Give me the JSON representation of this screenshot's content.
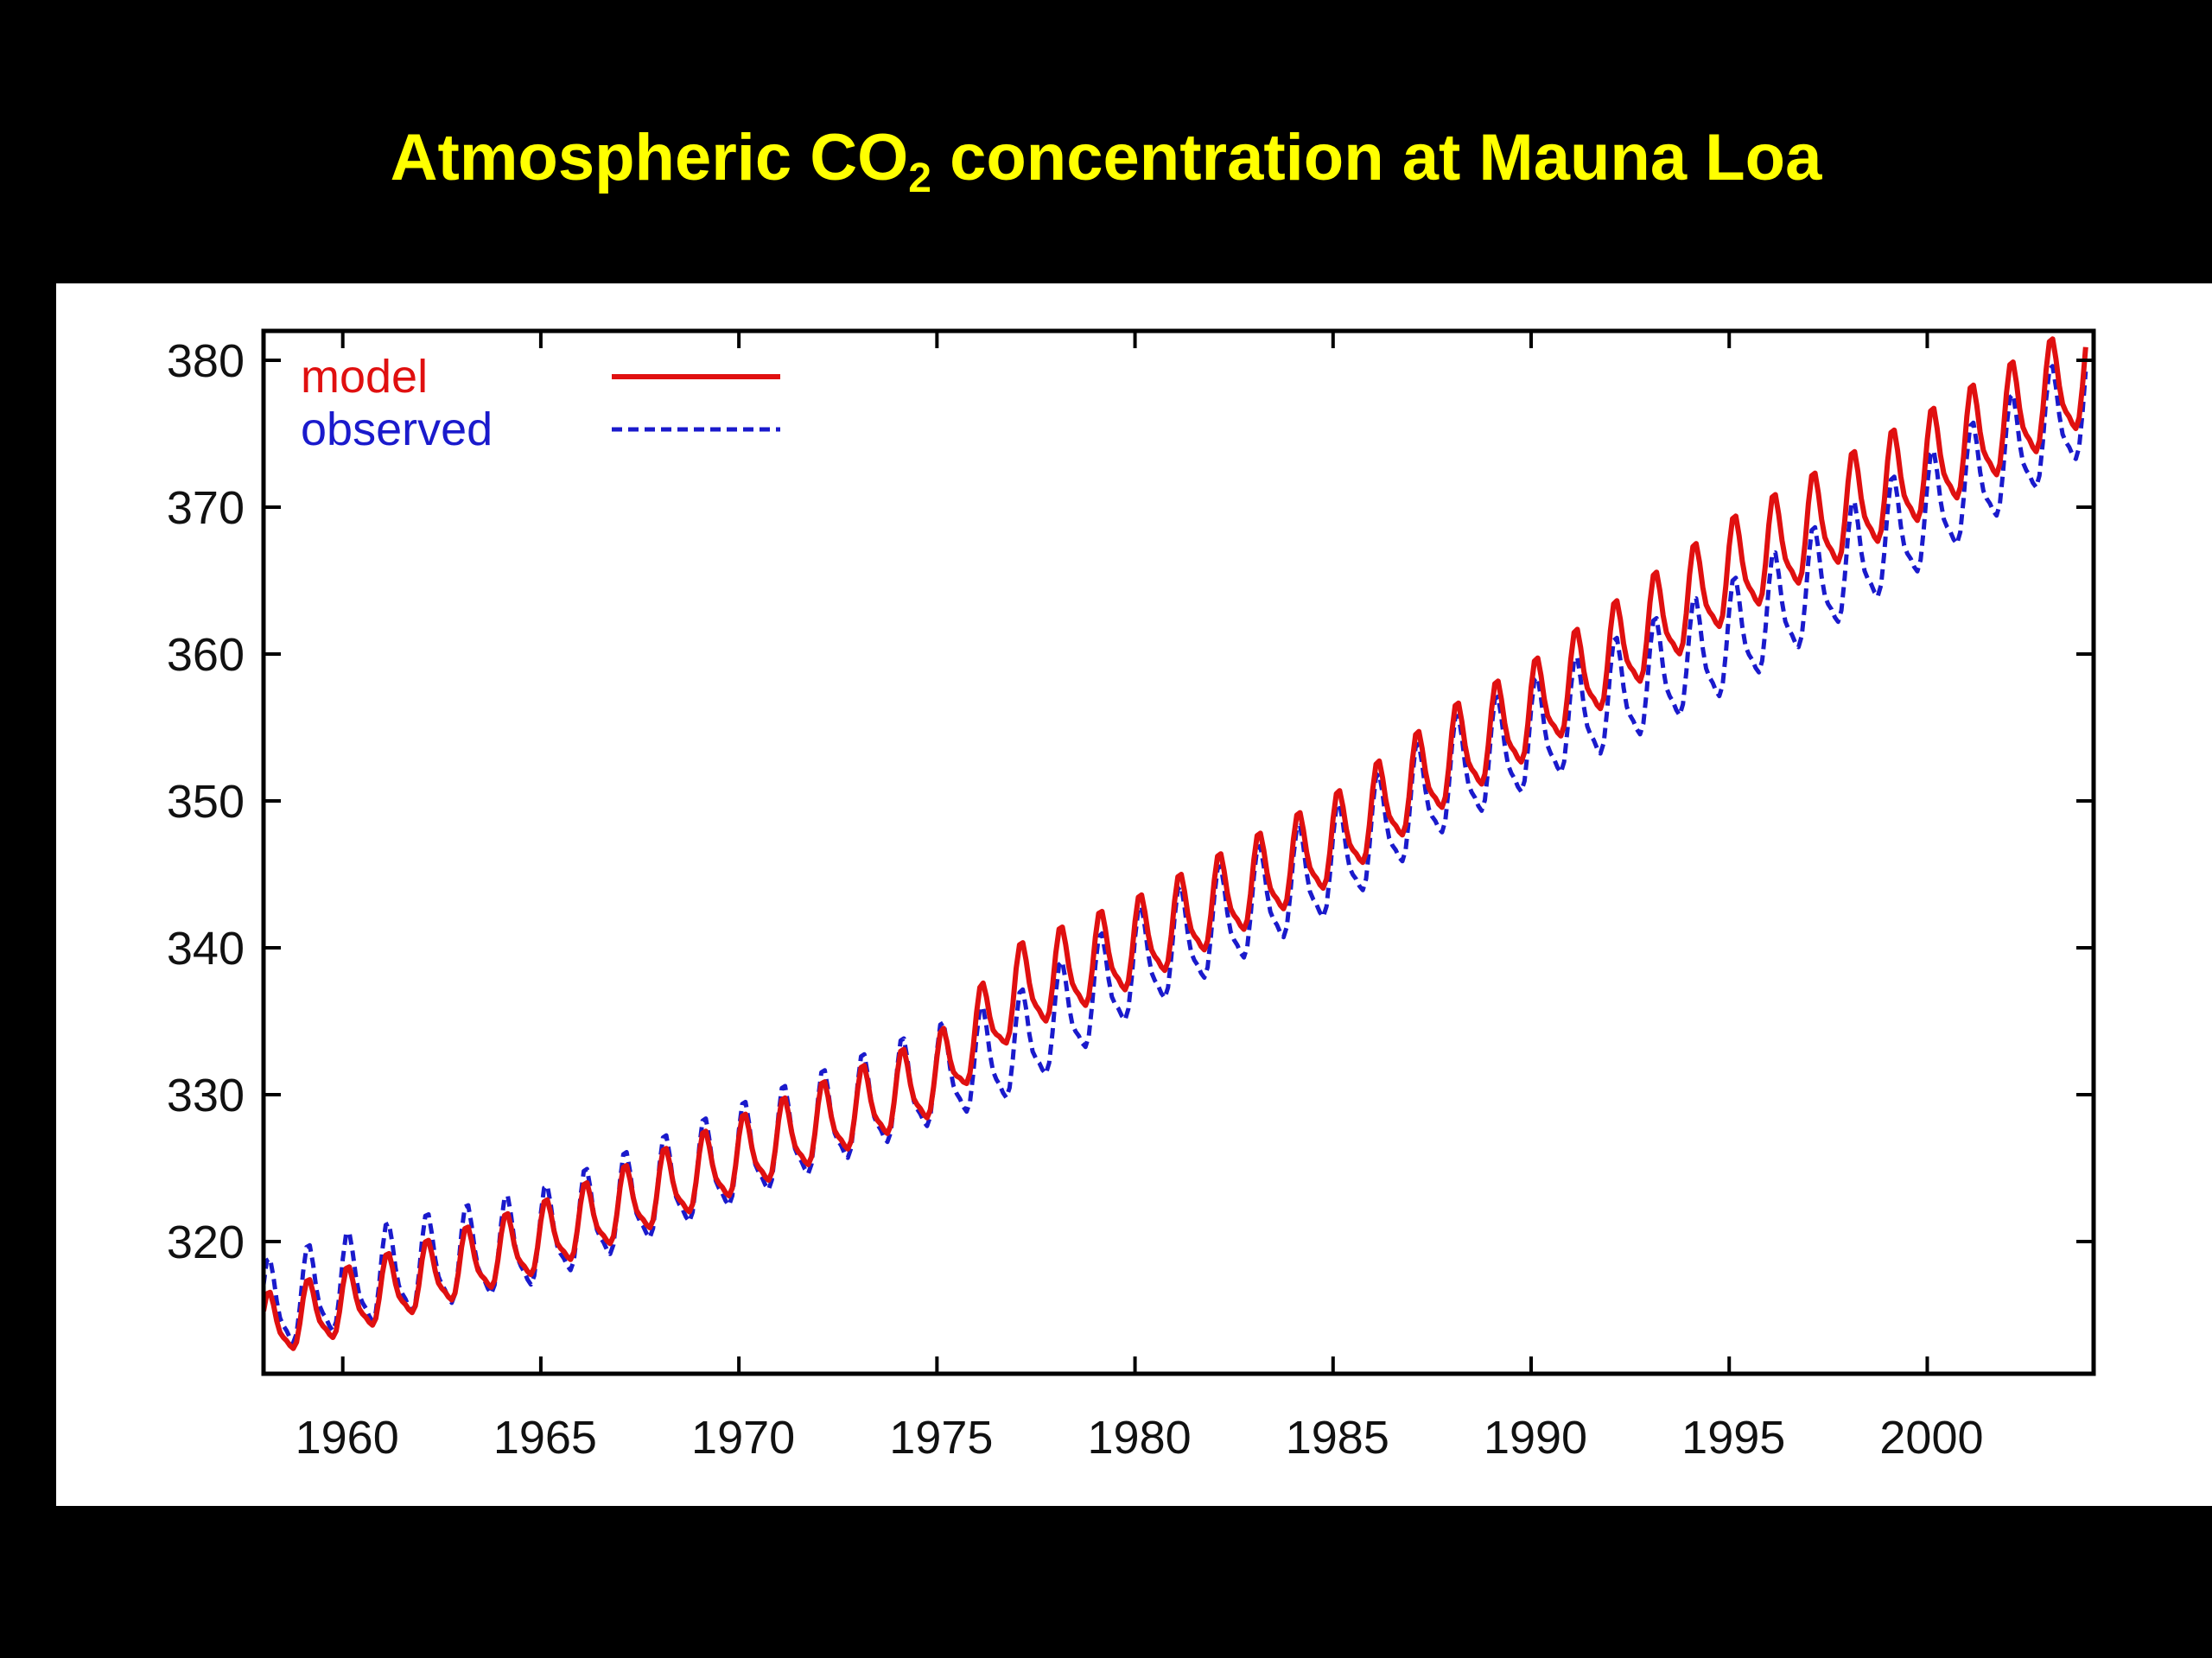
{
  "title": {
    "prefix": "Atmospheric CO",
    "subscript": "2",
    "suffix": " concentration at Mauna Loa"
  },
  "colors": {
    "background": "#000000",
    "title": "#ffff00",
    "panel": "#ffffff",
    "model": "#e01010",
    "observed": "#1a1acc",
    "axis": "#000000"
  },
  "chart_data": {
    "type": "line",
    "title": "Atmospheric CO2 concentration at Mauna Loa",
    "xlabel": "",
    "ylabel": "",
    "xlim": [
      1958.0,
      2004.2
    ],
    "ylim": [
      311,
      382
    ],
    "x_ticks": [
      1960,
      1965,
      1970,
      1975,
      1980,
      1985,
      1990,
      1995,
      2000
    ],
    "y_ticks": [
      320,
      330,
      340,
      350,
      360,
      370,
      380
    ],
    "grid": false,
    "legend_position": "top-left",
    "sampling": "monthly, 1958.0 to 2004.0",
    "series": [
      {
        "name": "model",
        "style": "solid",
        "color": "#e01010",
        "annual_points": [
          {
            "year": 1958,
            "mean": 314.0,
            "amp": 2.0
          },
          {
            "year": 1960,
            "mean": 315.6,
            "amp": 2.1
          },
          {
            "year": 1965,
            "mean": 320.0,
            "amp": 2.2
          },
          {
            "year": 1970,
            "mean": 325.6,
            "amp": 2.4
          },
          {
            "year": 1975,
            "mean": 331.0,
            "amp": 2.5
          },
          {
            "year": 1977,
            "mean": 336.8,
            "amp": 2.8
          },
          {
            "year": 1980,
            "mean": 340.0,
            "amp": 2.8
          },
          {
            "year": 1985,
            "mean": 347.0,
            "amp": 2.8
          },
          {
            "year": 1988,
            "mean": 352.8,
            "amp": 3.0
          },
          {
            "year": 1990,
            "mean": 355.8,
            "amp": 3.0
          },
          {
            "year": 1995,
            "mean": 365.3,
            "amp": 3.2
          },
          {
            "year": 2000,
            "mean": 372.5,
            "amp": 3.3
          },
          {
            "year": 2004,
            "mean": 378.8,
            "amp": 3.3
          }
        ]
      },
      {
        "name": "observed",
        "style": "dashed",
        "color": "#1a1acc",
        "annual_points": [
          {
            "year": 1958,
            "mean": 315.2,
            "amp": 2.9
          },
          {
            "year": 1960,
            "mean": 316.9,
            "amp": 3.0
          },
          {
            "year": 1965,
            "mean": 320.0,
            "amp": 3.0
          },
          {
            "year": 1970,
            "mean": 325.6,
            "amp": 3.1
          },
          {
            "year": 1975,
            "mean": 331.0,
            "amp": 3.1
          },
          {
            "year": 1977,
            "mean": 333.0,
            "amp": 3.2
          },
          {
            "year": 1980,
            "mean": 338.6,
            "amp": 3.3
          },
          {
            "year": 1985,
            "mean": 345.5,
            "amp": 3.3
          },
          {
            "year": 1988,
            "mean": 351.5,
            "amp": 3.4
          },
          {
            "year": 1990,
            "mean": 354.1,
            "amp": 3.4
          },
          {
            "year": 1995,
            "mean": 360.7,
            "amp": 3.5
          },
          {
            "year": 2000,
            "mean": 369.3,
            "amp": 3.5
          },
          {
            "year": 2004,
            "mean": 377.0,
            "amp": 3.5
          }
        ]
      }
    ]
  }
}
